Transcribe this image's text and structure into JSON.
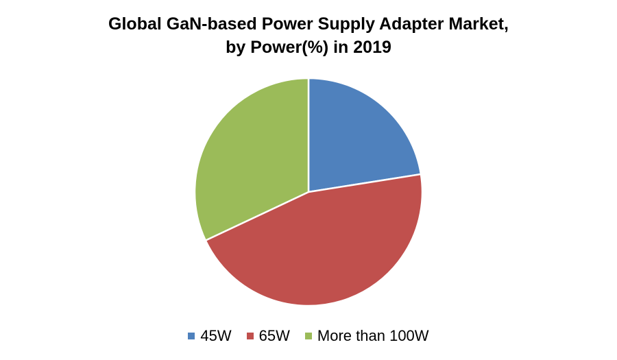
{
  "chart_data": {
    "type": "pie",
    "title_line1": "Global GaN-based Power Supply Adapter Market,",
    "title_line2": "by Power(%) in 2019",
    "legend_position": "bottom",
    "categories": [
      "45W",
      "65W",
      "More than 100W"
    ],
    "values": [
      22.5,
      45.5,
      32
    ],
    "colors": [
      "#4f81bd",
      "#c0504d",
      "#9bbb59"
    ]
  }
}
